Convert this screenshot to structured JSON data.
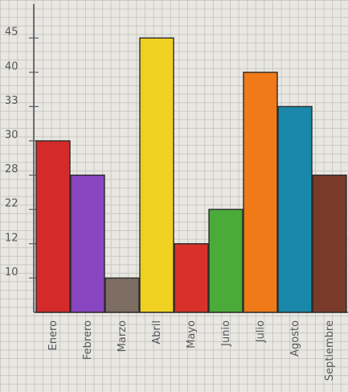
{
  "chart_data": {
    "type": "bar",
    "categories": [
      "Enero",
      "Febrero",
      "Marzo",
      "Abril",
      "Mayo",
      "Junio",
      "Julio",
      "Agosto",
      "Septiembre"
    ],
    "values": [
      30,
      28,
      10,
      45,
      12,
      22,
      40,
      33,
      28
    ],
    "colors": [
      "#d42a2a",
      "#8a45c0",
      "#7d6d63",
      "#f0d020",
      "#d8302a",
      "#4aaa3a",
      "#f07a18",
      "#1a88a8",
      "#7a3a2a"
    ],
    "yticks": [
      10,
      12,
      22,
      28,
      30,
      33,
      40,
      45
    ],
    "y_scale": "ordinal"
  }
}
